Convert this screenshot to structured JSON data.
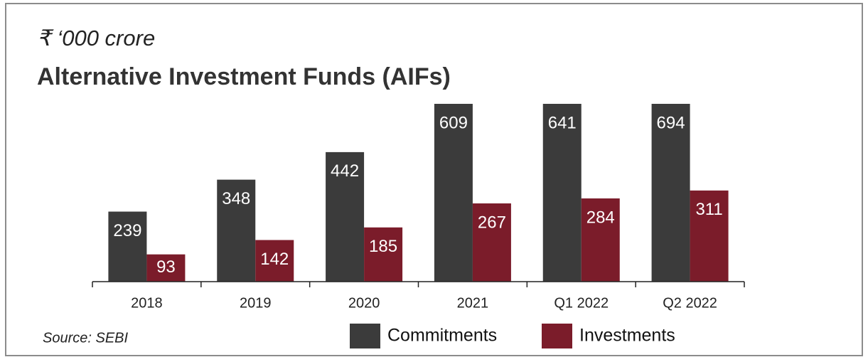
{
  "chart_data": {
    "type": "bar",
    "subtitle": "₹ ‘000 crore",
    "title": "Alternative Investment Funds (AIFs)",
    "categories": [
      "2018",
      "2019",
      "2020",
      "2021",
      "Q1 2022",
      "Q2 2022"
    ],
    "series": [
      {
        "name": "Commitments",
        "color": "#3b3b3b",
        "values": [
          239,
          348,
          442,
          609,
          641,
          694
        ]
      },
      {
        "name": "Investments",
        "color": "#7b1c2a",
        "values": [
          93,
          142,
          185,
          267,
          284,
          311
        ]
      }
    ],
    "source": "Source: SEBI"
  }
}
